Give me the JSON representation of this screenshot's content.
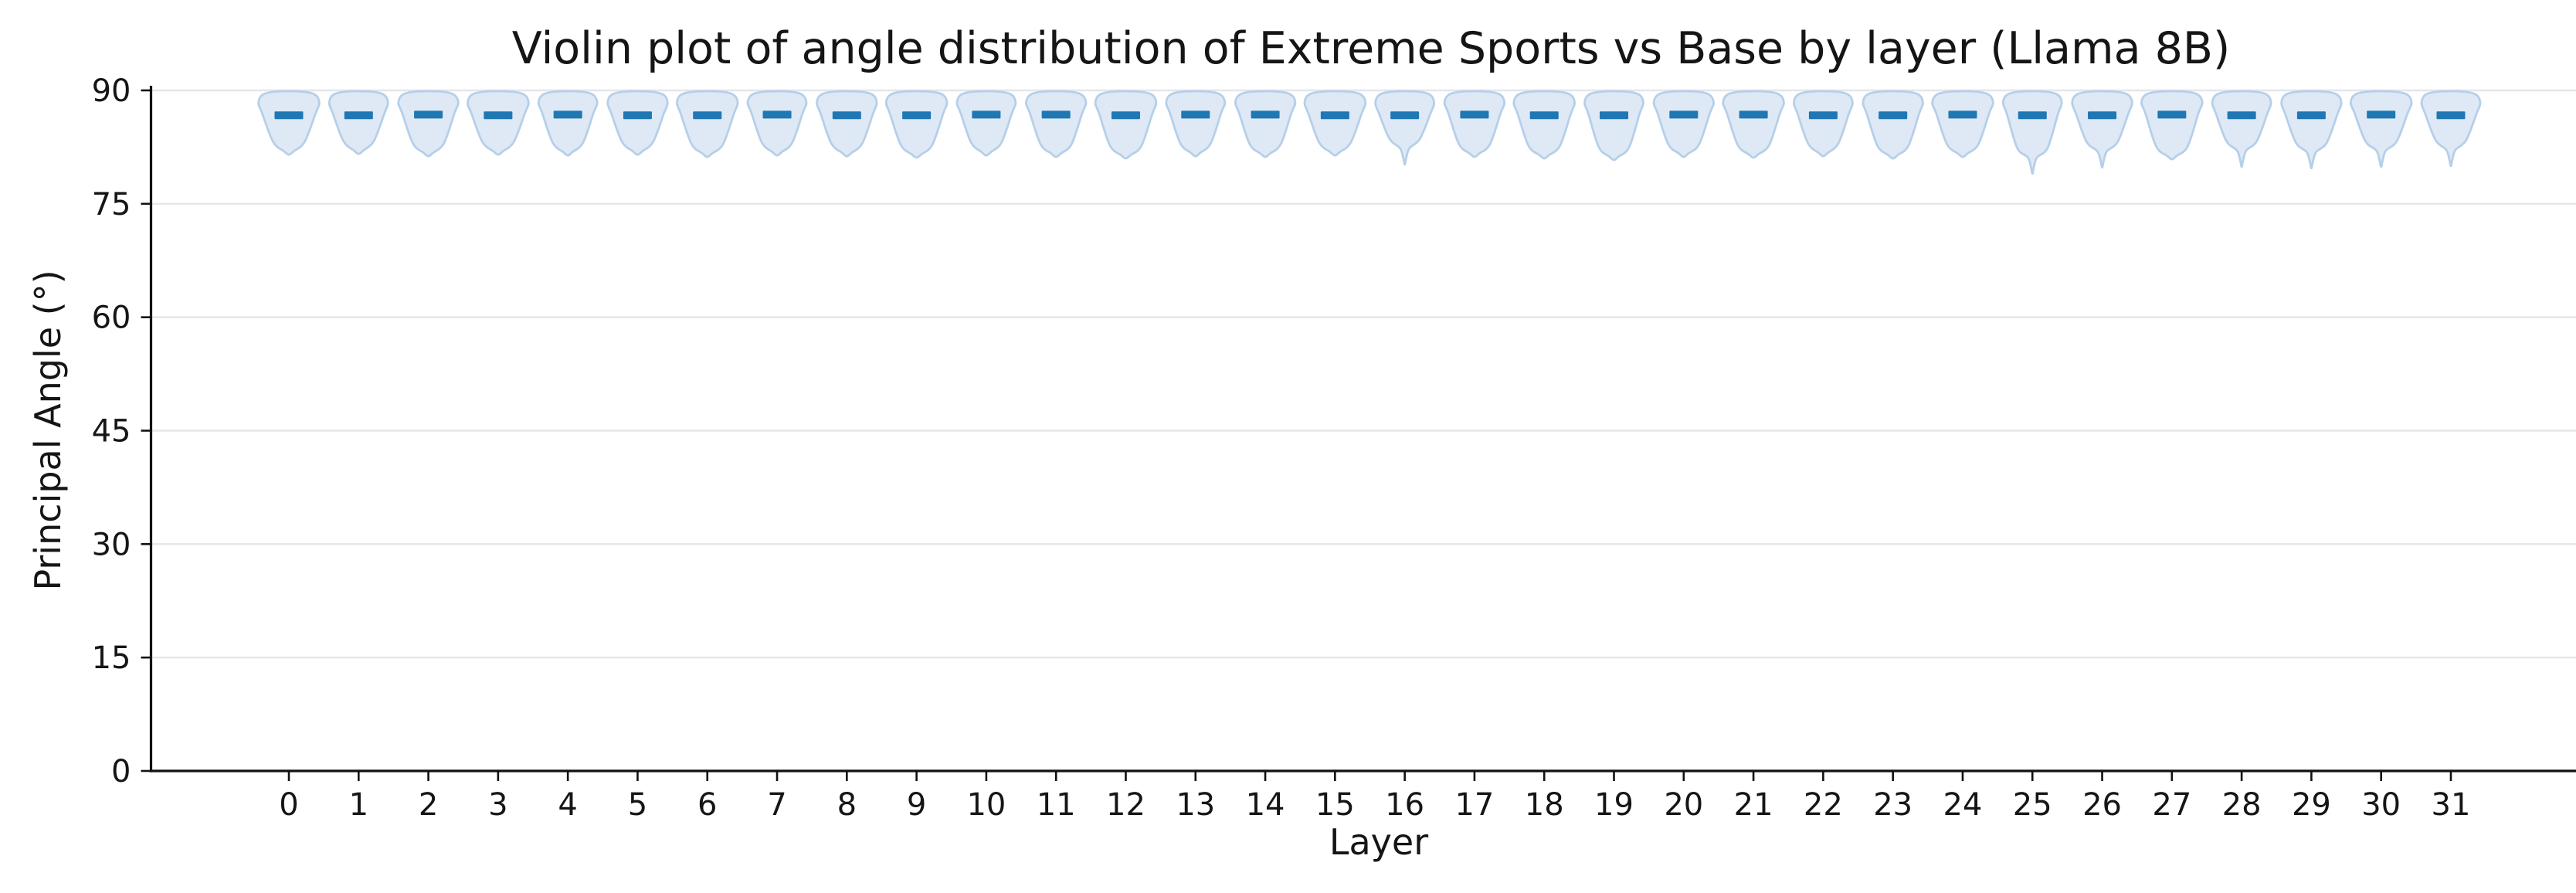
{
  "chart_data": {
    "type": "violin",
    "title": "Violin plot of angle distribution of Extreme Sports vs Base by layer (Llama 8B)",
    "xlabel": "Layer",
    "ylabel": "Principal Angle (°)",
    "ylim": [
      0,
      90
    ],
    "yticks": [
      0,
      15,
      30,
      45,
      60,
      75,
      90
    ],
    "xticks": [
      "0",
      "1",
      "2",
      "3",
      "4",
      "5",
      "6",
      "7",
      "8",
      "9",
      "10",
      "11",
      "12",
      "13",
      "14",
      "15",
      "16",
      "17",
      "18",
      "19",
      "20",
      "21",
      "22",
      "23",
      "24",
      "25",
      "26",
      "27",
      "28",
      "29",
      "30",
      "31"
    ],
    "grid": true,
    "legend_position": "none",
    "colors": {
      "violin_fill": "#dee9f5",
      "violin_edge": "#b6cfe9",
      "median_bar": "#1f77b4",
      "gridline": "#e4e6ea",
      "axis": "#111111",
      "text": "#151515"
    },
    "violins": [
      {
        "layer": 0,
        "median": 86.7,
        "top": 89.9,
        "bottom": 81.5,
        "shape": "blunt"
      },
      {
        "layer": 1,
        "median": 86.7,
        "top": 89.9,
        "bottom": 81.6,
        "shape": "blunt"
      },
      {
        "layer": 2,
        "median": 86.8,
        "top": 89.9,
        "bottom": 81.3,
        "shape": "blunt"
      },
      {
        "layer": 3,
        "median": 86.7,
        "top": 89.9,
        "bottom": 81.5,
        "shape": "blunt"
      },
      {
        "layer": 4,
        "median": 86.8,
        "top": 89.9,
        "bottom": 81.4,
        "shape": "blunt"
      },
      {
        "layer": 5,
        "median": 86.7,
        "top": 89.9,
        "bottom": 81.5,
        "shape": "blunt"
      },
      {
        "layer": 6,
        "median": 86.7,
        "top": 89.9,
        "bottom": 81.2,
        "shape": "pointed"
      },
      {
        "layer": 7,
        "median": 86.8,
        "top": 89.9,
        "bottom": 81.4,
        "shape": "blunt"
      },
      {
        "layer": 8,
        "median": 86.7,
        "top": 89.9,
        "bottom": 81.3,
        "shape": "blunt"
      },
      {
        "layer": 9,
        "median": 86.7,
        "top": 89.9,
        "bottom": 81.1,
        "shape": "pointed"
      },
      {
        "layer": 10,
        "median": 86.8,
        "top": 89.9,
        "bottom": 81.4,
        "shape": "blunt"
      },
      {
        "layer": 11,
        "median": 86.8,
        "top": 89.9,
        "bottom": 81.2,
        "shape": "blunt"
      },
      {
        "layer": 12,
        "median": 86.7,
        "top": 89.9,
        "bottom": 81.0,
        "shape": "pointed"
      },
      {
        "layer": 13,
        "median": 86.8,
        "top": 89.9,
        "bottom": 81.3,
        "shape": "blunt"
      },
      {
        "layer": 14,
        "median": 86.8,
        "top": 89.9,
        "bottom": 81.2,
        "shape": "blunt"
      },
      {
        "layer": 15,
        "median": 86.7,
        "top": 89.9,
        "bottom": 81.4,
        "shape": "blunt"
      },
      {
        "layer": 16,
        "median": 86.7,
        "top": 89.9,
        "bottom": 80.2,
        "shape": "tailed"
      },
      {
        "layer": 17,
        "median": 86.8,
        "top": 89.9,
        "bottom": 81.2,
        "shape": "pointed"
      },
      {
        "layer": 18,
        "median": 86.7,
        "top": 89.9,
        "bottom": 81.0,
        "shape": "pointed"
      },
      {
        "layer": 19,
        "median": 86.7,
        "top": 89.9,
        "bottom": 80.8,
        "shape": "pointed"
      },
      {
        "layer": 20,
        "median": 86.8,
        "top": 89.9,
        "bottom": 81.2,
        "shape": "blunt"
      },
      {
        "layer": 21,
        "median": 86.8,
        "top": 89.9,
        "bottom": 81.1,
        "shape": "pointed"
      },
      {
        "layer": 22,
        "median": 86.7,
        "top": 89.9,
        "bottom": 81.3,
        "shape": "blunt"
      },
      {
        "layer": 23,
        "median": 86.7,
        "top": 89.9,
        "bottom": 81.0,
        "shape": "pointed"
      },
      {
        "layer": 24,
        "median": 86.8,
        "top": 89.9,
        "bottom": 81.2,
        "shape": "blunt"
      },
      {
        "layer": 25,
        "median": 86.7,
        "top": 89.9,
        "bottom": 79.0,
        "shape": "tailed"
      },
      {
        "layer": 26,
        "median": 86.7,
        "top": 89.9,
        "bottom": 79.8,
        "shape": "tailed"
      },
      {
        "layer": 27,
        "median": 86.8,
        "top": 89.9,
        "bottom": 80.9,
        "shape": "pointed"
      },
      {
        "layer": 28,
        "median": 86.7,
        "top": 89.9,
        "bottom": 79.9,
        "shape": "tailed"
      },
      {
        "layer": 29,
        "median": 86.7,
        "top": 89.9,
        "bottom": 79.7,
        "shape": "tailed"
      },
      {
        "layer": 30,
        "median": 86.8,
        "top": 89.9,
        "bottom": 79.9,
        "shape": "tailed"
      },
      {
        "layer": 31,
        "median": 86.7,
        "top": 89.9,
        "bottom": 80.0,
        "shape": "tailed"
      }
    ]
  }
}
